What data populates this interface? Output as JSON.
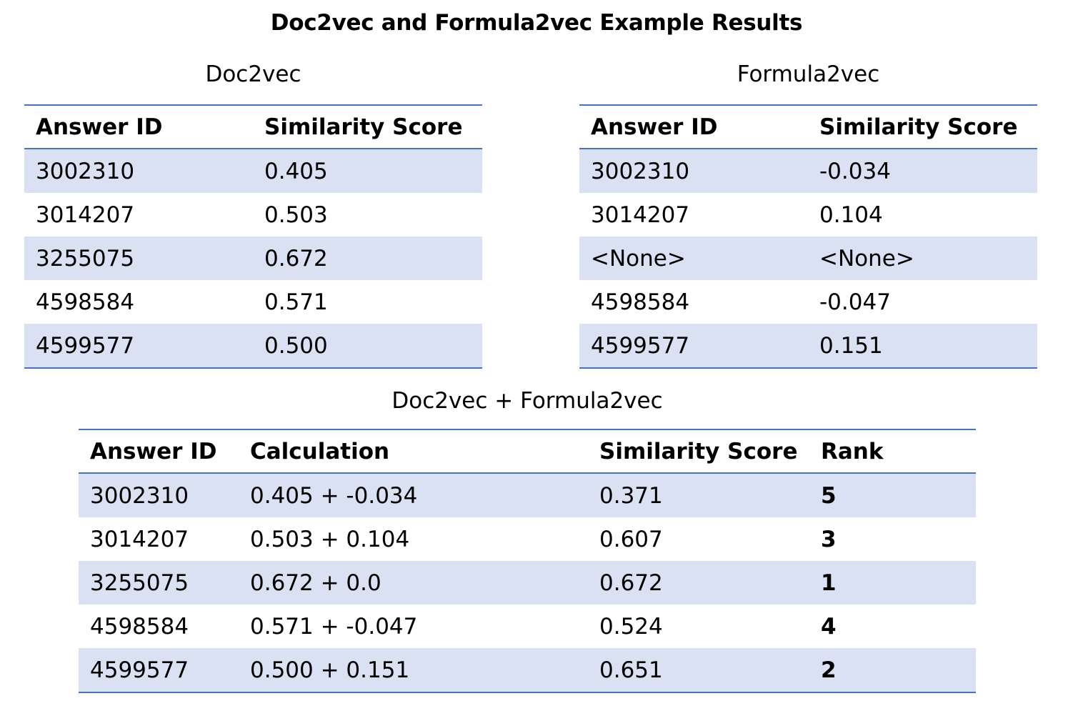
{
  "title": "Doc2vec and Formula2vec Example Results",
  "doc2vec": {
    "caption": "Doc2vec",
    "headers": [
      "Answer ID",
      "Similarity Score"
    ],
    "rows": [
      [
        "3002310",
        "0.405"
      ],
      [
        "3014207",
        "0.503"
      ],
      [
        "3255075",
        "0.672"
      ],
      [
        "4598584",
        "0.571"
      ],
      [
        "4599577",
        "0.500"
      ]
    ]
  },
  "formula2vec": {
    "caption": "Formula2vec",
    "headers": [
      "Answer ID",
      "Similarity Score"
    ],
    "rows": [
      [
        "3002310",
        "-0.034"
      ],
      [
        "3014207",
        "0.104"
      ],
      [
        "<None>",
        "<None>"
      ],
      [
        "4598584",
        "-0.047"
      ],
      [
        "4599577",
        "0.151"
      ]
    ]
  },
  "combined": {
    "caption": "Doc2vec + Formula2vec",
    "headers": [
      "Answer ID",
      "Calculation",
      "Similarity Score",
      "Rank"
    ],
    "rows": [
      [
        "3002310",
        "0.405 + -0.034",
        "0.371",
        "5"
      ],
      [
        "3014207",
        "0.503 + 0.104",
        "0.607",
        "3"
      ],
      [
        "3255075",
        "0.672 + 0.0",
        "0.672",
        "1"
      ],
      [
        "4598584",
        "0.571 + -0.047",
        "0.524",
        "4"
      ],
      [
        "4599577",
        "0.500 + 0.151",
        "0.651",
        "2"
      ]
    ]
  },
  "colors": {
    "rule": "#4472C4",
    "band": "#D9E1F2"
  }
}
